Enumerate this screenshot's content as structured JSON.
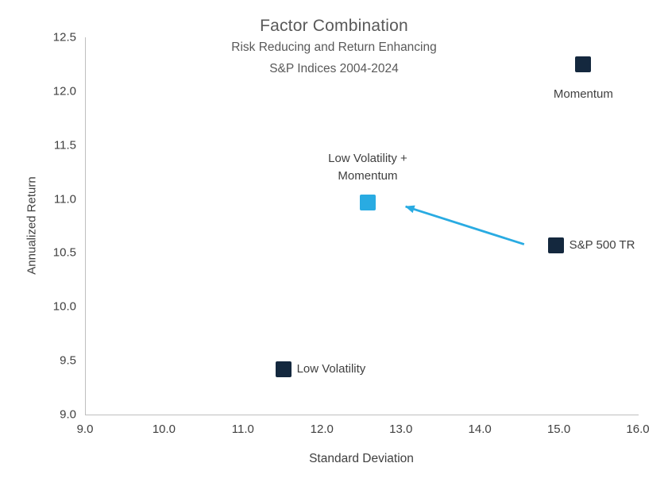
{
  "chart_data": {
    "type": "scatter",
    "title": "Factor Combination",
    "subtitle_line1": "Risk Reducing and Return Enhancing",
    "subtitle_line2": "S&P Indices 2004-2024",
    "xlabel": "Standard Deviation",
    "ylabel": "Annualized Return",
    "xlim": [
      9.0,
      16.0
    ],
    "ylim": [
      9.0,
      12.5
    ],
    "x_ticks": [
      "9.0",
      "10.0",
      "11.0",
      "12.0",
      "13.0",
      "14.0",
      "15.0",
      "16.0"
    ],
    "y_ticks": [
      "9.0",
      "9.5",
      "10.0",
      "10.5",
      "11.0",
      "11.5",
      "12.0",
      "12.5"
    ],
    "grid": false,
    "legend": "none",
    "points": [
      {
        "label": "Momentum",
        "x": 15.3,
        "y": 12.25,
        "color": "#14283e",
        "label_position": "below"
      },
      {
        "label": "S&P 500 TR",
        "x": 14.95,
        "y": 10.57,
        "color": "#14283e",
        "label_position": "right"
      },
      {
        "label": "Low Volatility",
        "x": 11.5,
        "y": 9.42,
        "color": "#14283e",
        "label_position": "right"
      },
      {
        "label": "Low Volatility +\nMomentum",
        "x": 12.57,
        "y": 10.97,
        "color": "#29abe2",
        "label_position": "above"
      }
    ],
    "arrow": {
      "from": [
        14.55,
        10.58
      ],
      "to": [
        13.05,
        10.93
      ],
      "color": "#29abe2"
    },
    "colors": {
      "marker_dark": "#14283e",
      "accent": "#29abe2",
      "title_text": "#595959",
      "axis_text": "#404040",
      "axis_line": "#bfbfbf"
    }
  }
}
